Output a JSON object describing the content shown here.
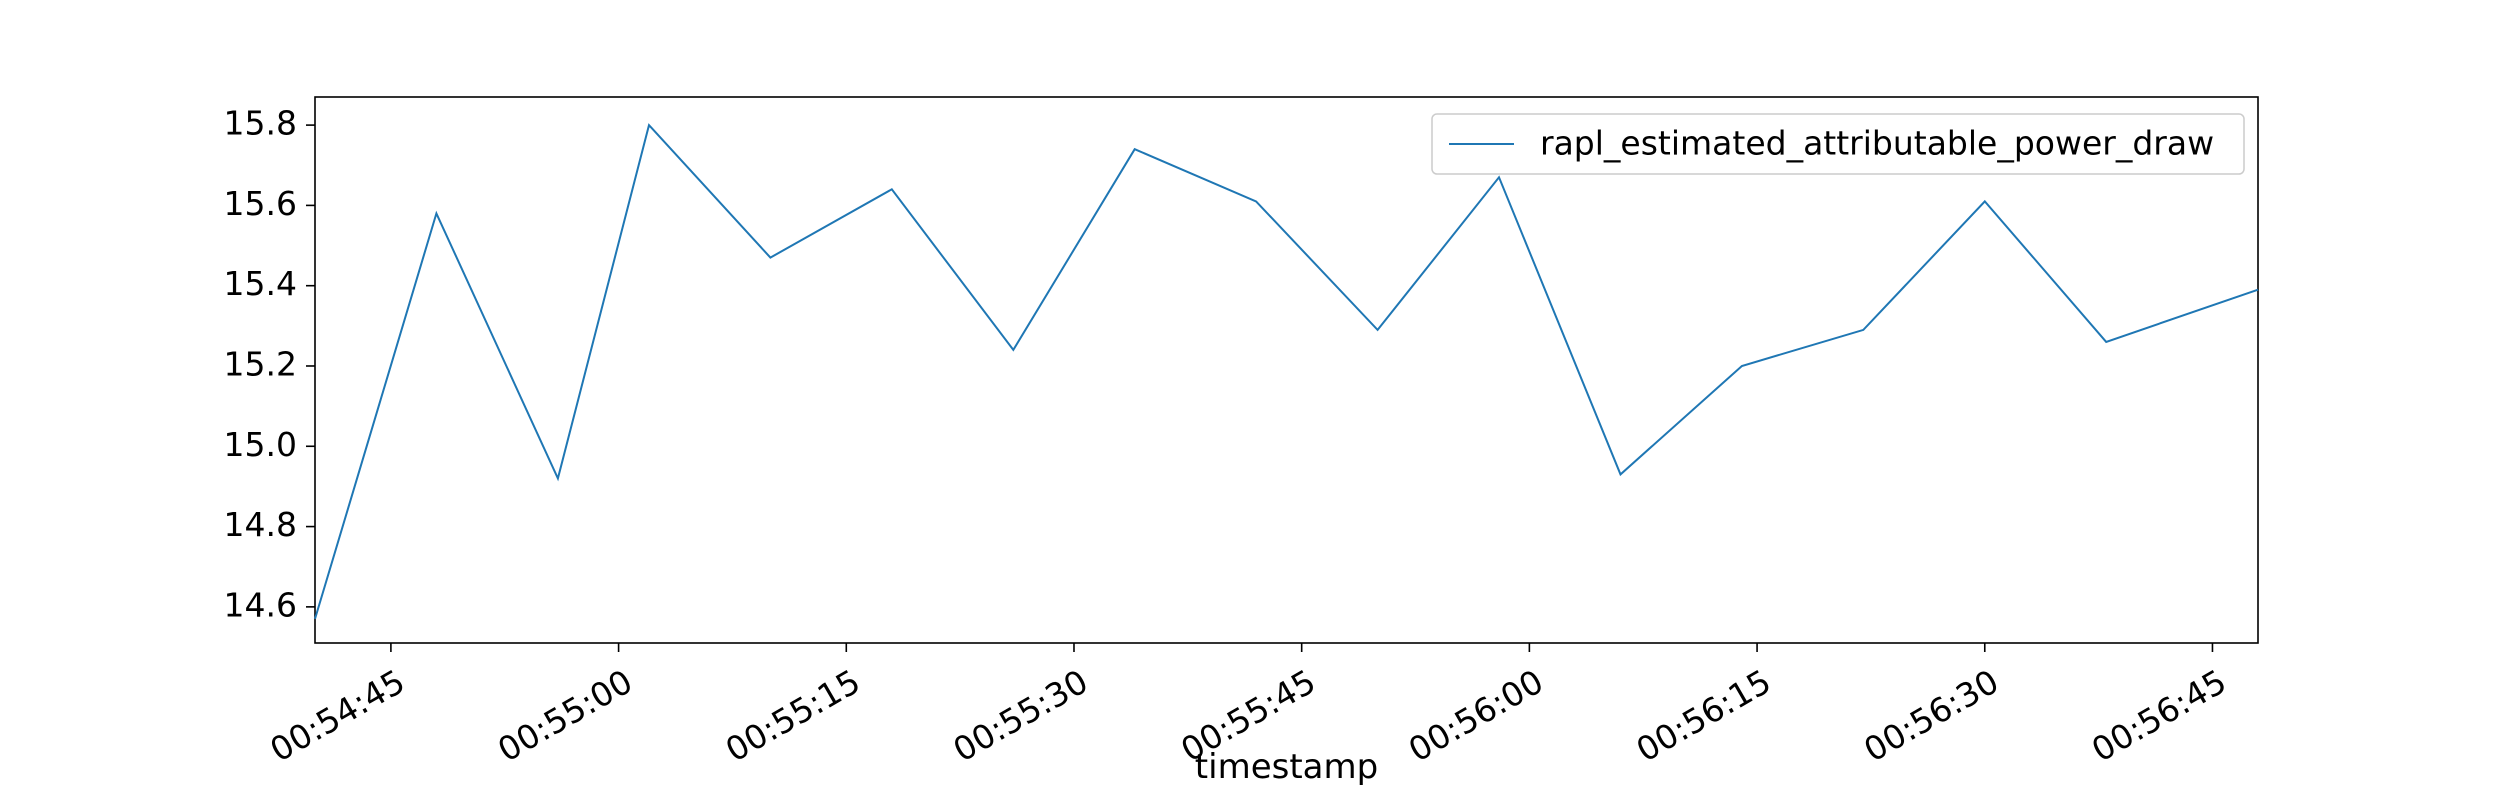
{
  "chart_data": {
    "type": "line",
    "title": "",
    "xlabel": "timestamp",
    "ylabel": "",
    "x_kind": "time",
    "xlim": [
      "00:54:40",
      "00:56:48"
    ],
    "ylim": [
      14.51,
      15.87
    ],
    "x_ticks": [
      "00:54:45",
      "00:55:00",
      "00:55:15",
      "00:55:30",
      "00:55:45",
      "00:56:00",
      "00:56:15",
      "00:56:30",
      "00:56:45"
    ],
    "y_ticks": [
      "14.6",
      "14.8",
      "15.0",
      "15.2",
      "15.4",
      "15.6",
      "15.8"
    ],
    "grid": false,
    "legend_position": "top-right",
    "line_color": "#1f77b4",
    "series": [
      {
        "name": "rapl_estimated_attributable_power_draw",
        "x": [
          "00:54:40",
          "00:54:48",
          "00:54:56",
          "00:55:02",
          "00:55:10",
          "00:55:18",
          "00:55:26",
          "00:55:34",
          "00:55:42",
          "00:55:50",
          "00:55:58",
          "00:56:06",
          "00:56:14",
          "00:56:22",
          "00:56:30",
          "00:56:38",
          "00:56:48"
        ],
        "values": [
          14.57,
          15.58,
          14.92,
          15.8,
          15.47,
          15.64,
          15.24,
          15.74,
          15.61,
          15.29,
          15.67,
          14.93,
          15.2,
          15.29,
          15.61,
          15.26,
          15.39
        ]
      }
    ]
  }
}
